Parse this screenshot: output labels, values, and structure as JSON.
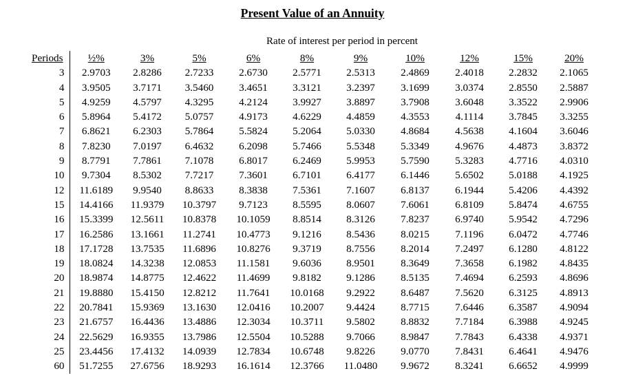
{
  "title": "Present Value of an Annuity",
  "subtitle": "Rate of interest per period in percent",
  "table": {
    "period_header": "Periods",
    "rate_headers": [
      "½%",
      "3%",
      "5%",
      "6%",
      "8%",
      "9%",
      "10%",
      "12%",
      "15%",
      "20%"
    ],
    "rows": [
      {
        "period": "3",
        "values": [
          "2.9703",
          "2.8286",
          "2.7233",
          "2.6730",
          "2.5771",
          "2.5313",
          "2.4869",
          "2.4018",
          "2.2832",
          "2.1065"
        ]
      },
      {
        "period": "4",
        "values": [
          "3.9505",
          "3.7171",
          "3.5460",
          "3.4651",
          "3.3121",
          "3.2397",
          "3.1699",
          "3.0374",
          "2.8550",
          "2.5887"
        ]
      },
      {
        "period": "5",
        "values": [
          "4.9259",
          "4.5797",
          "4.3295",
          "4.2124",
          "3.9927",
          "3.8897",
          "3.7908",
          "3.6048",
          "3.3522",
          "2.9906"
        ]
      },
      {
        "period": "6",
        "values": [
          "5.8964",
          "5.4172",
          "5.0757",
          "4.9173",
          "4.6229",
          "4.4859",
          "4.3553",
          "4.1114",
          "3.7845",
          "3.3255"
        ]
      },
      {
        "period": "7",
        "values": [
          "6.8621",
          "6.2303",
          "5.7864",
          "5.5824",
          "5.2064",
          "5.0330",
          "4.8684",
          "4.5638",
          "4.1604",
          "3.6046"
        ]
      },
      {
        "period": "8",
        "values": [
          "7.8230",
          "7.0197",
          "6.4632",
          "6.2098",
          "5.7466",
          "5.5348",
          "5.3349",
          "4.9676",
          "4.4873",
          "3.8372"
        ]
      },
      {
        "period": "9",
        "values": [
          "8.7791",
          "7.7861",
          "7.1078",
          "6.8017",
          "6.2469",
          "5.9953",
          "5.7590",
          "5.3283",
          "4.7716",
          "4.0310"
        ]
      },
      {
        "period": "10",
        "values": [
          "9.7304",
          "8.5302",
          "7.7217",
          "7.3601",
          "6.7101",
          "6.4177",
          "6.1446",
          "5.6502",
          "5.0188",
          "4.1925"
        ]
      },
      {
        "period": "12",
        "values": [
          "11.6189",
          "9.9540",
          "8.8633",
          "8.3838",
          "7.5361",
          "7.1607",
          "6.8137",
          "6.1944",
          "5.4206",
          "4.4392"
        ]
      },
      {
        "period": "15",
        "values": [
          "14.4166",
          "11.9379",
          "10.3797",
          "9.7123",
          "8.5595",
          "8.0607",
          "7.6061",
          "6.8109",
          "5.8474",
          "4.6755"
        ]
      },
      {
        "period": "16",
        "values": [
          "15.3399",
          "12.5611",
          "10.8378",
          "10.1059",
          "8.8514",
          "8.3126",
          "7.8237",
          "6.9740",
          "5.9542",
          "4.7296"
        ]
      },
      {
        "period": "17",
        "values": [
          "16.2586",
          "13.1661",
          "11.2741",
          "10.4773",
          "9.1216",
          "8.5436",
          "8.0215",
          "7.1196",
          "6.0472",
          "4.7746"
        ]
      },
      {
        "period": "18",
        "values": [
          "17.1728",
          "13.7535",
          "11.6896",
          "10.8276",
          "9.3719",
          "8.7556",
          "8.2014",
          "7.2497",
          "6.1280",
          "4.8122"
        ]
      },
      {
        "period": "19",
        "values": [
          "18.0824",
          "14.3238",
          "12.0853",
          "11.1581",
          "9.6036",
          "8.9501",
          "8.3649",
          "7.3658",
          "6.1982",
          "4.8435"
        ]
      },
      {
        "period": "20",
        "values": [
          "18.9874",
          "14.8775",
          "12.4622",
          "11.4699",
          "9.8182",
          "9.1286",
          "8.5135",
          "7.4694",
          "6.2593",
          "4.8696"
        ]
      },
      {
        "period": "21",
        "values": [
          "19.8880",
          "15.4150",
          "12.8212",
          "11.7641",
          "10.0168",
          "9.2922",
          "8.6487",
          "7.5620",
          "6.3125",
          "4.8913"
        ]
      },
      {
        "period": "22",
        "values": [
          "20.7841",
          "15.9369",
          "13.1630",
          "12.0416",
          "10.2007",
          "9.4424",
          "8.7715",
          "7.6446",
          "6.3587",
          "4.9094"
        ]
      },
      {
        "period": "23",
        "values": [
          "21.6757",
          "16.4436",
          "13.4886",
          "12.3034",
          "10.3711",
          "9.5802",
          "8.8832",
          "7.7184",
          "6.3988",
          "4.9245"
        ]
      },
      {
        "period": "24",
        "values": [
          "22.5629",
          "16.9355",
          "13.7986",
          "12.5504",
          "10.5288",
          "9.7066",
          "8.9847",
          "7.7843",
          "6.4338",
          "4.9371"
        ]
      },
      {
        "period": "25",
        "values": [
          "23.4456",
          "17.4132",
          "14.0939",
          "12.7834",
          "10.6748",
          "9.8226",
          "9.0770",
          "7.8431",
          "6.4641",
          "4.9476"
        ]
      },
      {
        "period": "60",
        "values": [
          "51.7255",
          "27.6756",
          "18.9293",
          "16.1614",
          "12.3766",
          "11.0480",
          "9.9672",
          "8.3241",
          "6.6652",
          "4.9999"
        ]
      }
    ]
  }
}
